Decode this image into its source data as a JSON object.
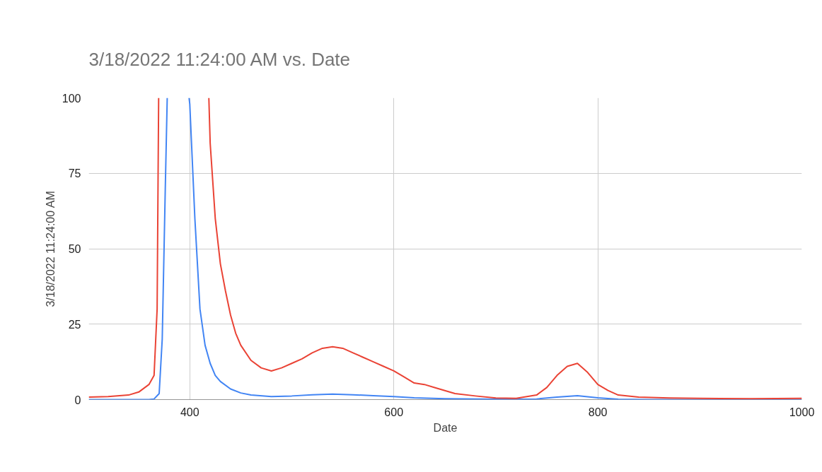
{
  "chart_data": {
    "type": "line",
    "title": "3/18/2022 11:24:00 AM vs. Date",
    "xlabel": "Date",
    "ylabel": "3/18/2022 11:24:00 AM",
    "xlim": [
      301,
      1000
    ],
    "ylim": [
      0,
      100
    ],
    "xticks": [
      400,
      600,
      800,
      1000
    ],
    "yticks": [
      0,
      25,
      50,
      75,
      100
    ],
    "grid": true,
    "series": [
      {
        "color": "#4285f4",
        "x": [
          301,
          320,
          340,
          360,
          365,
          370,
          373,
          376,
          377.9,
          380,
          399.3,
          400,
          405,
          410,
          415,
          420,
          425,
          430,
          440,
          450,
          460,
          480,
          500,
          520,
          540,
          560,
          580,
          600,
          620,
          650,
          700,
          740,
          760,
          780,
          800,
          820,
          850,
          900,
          1000
        ],
        "values": [
          0,
          0,
          0,
          0,
          0.2,
          2,
          20,
          70,
          100,
          null,
          100,
          98,
          60,
          30,
          18,
          12,
          8,
          6,
          3.5,
          2.2,
          1.5,
          1,
          1.2,
          1.6,
          1.8,
          1.6,
          1.3,
          1,
          0.6,
          0.3,
          0.1,
          0.2,
          0.8,
          1.3,
          0.6,
          0.1,
          0,
          0,
          0
        ]
      },
      {
        "color": "#ea4335",
        "x": [
          301,
          320,
          340,
          350,
          360,
          365,
          368,
          369.5,
          380,
          418.7,
          420,
          425,
          430,
          435,
          440,
          445,
          450,
          460,
          470,
          480,
          490,
          500,
          510,
          520,
          530,
          540,
          550,
          560,
          570,
          580,
          590,
          600,
          610,
          620,
          630,
          640,
          650,
          660,
          680,
          700,
          720,
          740,
          750,
          760,
          770,
          780,
          790,
          800,
          810,
          820,
          840,
          870,
          900,
          950,
          1000
        ],
        "values": [
          0.8,
          1,
          1.5,
          2.5,
          5,
          8,
          30,
          100,
          null,
          100,
          85,
          60,
          45,
          36,
          28,
          22,
          18,
          13,
          10.5,
          9.5,
          10.5,
          12,
          13.5,
          15.5,
          17,
          17.5,
          17,
          15.5,
          14,
          12.5,
          11,
          9.5,
          7.5,
          5.5,
          5,
          4,
          3,
          2,
          1.2,
          0.5,
          0.4,
          1.5,
          4,
          8,
          11,
          12,
          9,
          5,
          3,
          1.5,
          0.8,
          0.5,
          0.4,
          0.3,
          0.4
        ]
      }
    ]
  }
}
